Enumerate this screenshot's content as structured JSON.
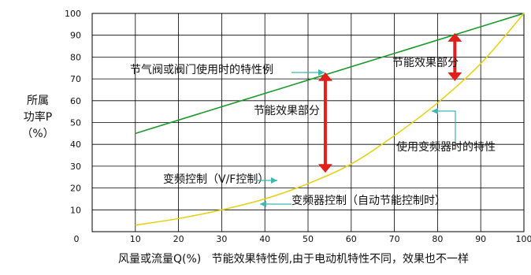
{
  "chart_data": {
    "type": "line",
    "xlim": [
      0,
      100
    ],
    "ylim": [
      0,
      100
    ],
    "x_ticks": [
      "0",
      "10",
      "20",
      "30",
      "40",
      "50",
      "60",
      "70",
      "80",
      "90",
      "100"
    ],
    "y_ticks": [
      "10",
      "20",
      "30",
      "40",
      "50",
      "60",
      "70",
      "80",
      "90",
      "100"
    ],
    "ylabel_lines": [
      "所属",
      "功率P",
      "（%）"
    ],
    "xlabel": "风量或流量Q(%)",
    "caption": "节能效果特性例,由于电动机特性不同，效果也不一样",
    "grid": true,
    "series": [
      {
        "color": "#1a9a2a",
        "x": [
          10,
          100
        ],
        "y": [
          45,
          100
        ]
      },
      {
        "color": "#e6d21a",
        "x": [
          10,
          20,
          30,
          40,
          50,
          60,
          70,
          80,
          90,
          100
        ],
        "y": [
          3,
          6,
          10,
          15,
          22,
          31,
          44,
          59,
          77,
          100
        ]
      }
    ],
    "annotations": [
      {
        "text": "节气阀或阀门使用时的特性例"
      },
      {
        "text": "节能效果部分"
      },
      {
        "text": "节能效果部分"
      },
      {
        "text": "使用变频器时的特性"
      },
      {
        "text": "变频控制（V/F控制）"
      },
      {
        "text": "变频器控制（自动节能控制时）"
      }
    ],
    "range_markers": [
      {
        "x": 54,
        "y_from": 27,
        "y_to": 73,
        "color": "#e0201a"
      },
      {
        "x": 84,
        "y_from": 69,
        "y_to": 91,
        "color": "#e0201a"
      }
    ]
  }
}
